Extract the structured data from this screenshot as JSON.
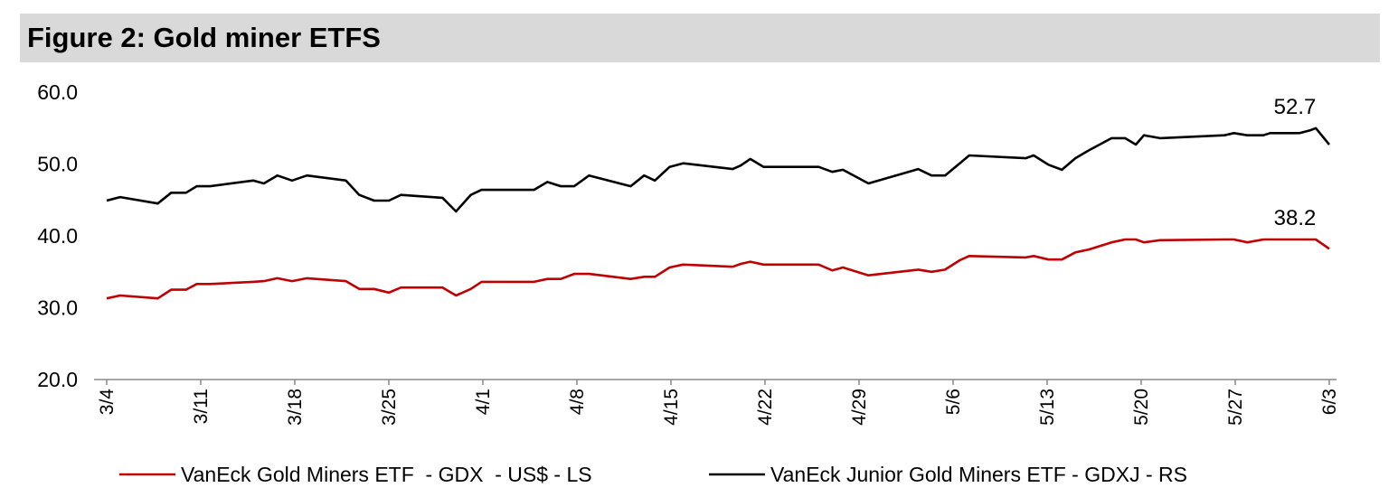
{
  "title": "Figure 2: Gold miner ETFS",
  "chart_data": {
    "type": "line",
    "title": "Figure 2: Gold miner ETFS",
    "xlabel": "",
    "ylabel": "",
    "x_unit": "days since 3/4",
    "ylim": [
      20,
      60
    ],
    "yticks": [
      "20.0",
      "30.0",
      "40.0",
      "50.0",
      "60.0"
    ],
    "ytick_values": [
      20,
      30,
      40,
      50,
      60
    ],
    "xticks": [
      {
        "label": "3/4",
        "day": 0
      },
      {
        "label": "3/11",
        "day": 7
      },
      {
        "label": "3/18",
        "day": 14
      },
      {
        "label": "3/25",
        "day": 21
      },
      {
        "label": "4/1",
        "day": 28
      },
      {
        "label": "4/8",
        "day": 35
      },
      {
        "label": "4/15",
        "day": 42
      },
      {
        "label": "4/22",
        "day": 49
      },
      {
        "label": "4/29",
        "day": 56
      },
      {
        "label": "5/6",
        "day": 63
      },
      {
        "label": "5/13",
        "day": 70
      },
      {
        "label": "5/20",
        "day": 77
      },
      {
        "label": "5/27",
        "day": 84
      },
      {
        "label": "6/3",
        "day": 91
      }
    ],
    "xlim": [
      0,
      91
    ],
    "grid": false,
    "legend_position": "bottom",
    "x": [
      0,
      1.0,
      3.8,
      4.8,
      5.9,
      6.7,
      7.7,
      10.9,
      11.7,
      12.7,
      13.8,
      14.9,
      17.8,
      18.8,
      19.9,
      21.0,
      21.9,
      25.0,
      26.0,
      27.1,
      27.9,
      31.8,
      32.8,
      33.8,
      34.8,
      35.9,
      39.0,
      40.0,
      40.8,
      41.9,
      42.9,
      46.6,
      47.2,
      47.9,
      48.9,
      53.0,
      54.0,
      54.8,
      56.7,
      60.4,
      61.4,
      62.4,
      63.5,
      64.2,
      68.4,
      69.0,
      70.1,
      71.1,
      72.1,
      73.1,
      74.8,
      75.8,
      76.6,
      77.2,
      78.4,
      83.2,
      83.9,
      84.9,
      86.1,
      86.6,
      88.8,
      89.6,
      90.0,
      91.0
    ],
    "series": [
      {
        "name": "VanEck Gold Miners ETF  - GDX  - US$ - LS",
        "color": "#c00000",
        "end_label": "38.2",
        "values": [
          31.3,
          31.7,
          31.3,
          32.5,
          32.5,
          33.3,
          33.3,
          33.6,
          33.7,
          34.1,
          33.7,
          34.1,
          33.7,
          32.6,
          32.6,
          32.1,
          32.8,
          32.8,
          31.7,
          32.6,
          33.6,
          33.6,
          34.0,
          34.0,
          34.7,
          34.7,
          34.0,
          34.3,
          34.3,
          35.6,
          36.0,
          35.7,
          36.1,
          36.4,
          36.0,
          36.0,
          35.2,
          35.6,
          34.5,
          35.3,
          35.0,
          35.3,
          36.6,
          37.2,
          37.0,
          37.2,
          36.7,
          36.7,
          37.7,
          38.1,
          39.1,
          39.5,
          39.5,
          39.1,
          39.4,
          39.5,
          39.5,
          39.1,
          39.5,
          39.5,
          39.5,
          39.5,
          39.5,
          38.2
        ]
      },
      {
        "name": "VanEck Junior Gold Miners ETF - GDXJ - RS",
        "color": "#000000",
        "end_label": "52.7",
        "values": [
          44.9,
          45.4,
          44.5,
          46.0,
          46.0,
          46.9,
          46.9,
          47.7,
          47.3,
          48.4,
          47.7,
          48.4,
          47.7,
          45.7,
          44.9,
          44.9,
          45.7,
          45.3,
          43.4,
          45.7,
          46.4,
          46.4,
          47.5,
          46.9,
          46.9,
          48.4,
          46.9,
          48.4,
          47.7,
          49.6,
          50.1,
          49.3,
          49.8,
          50.7,
          49.6,
          49.6,
          48.9,
          49.2,
          47.3,
          49.3,
          48.4,
          48.4,
          50.1,
          51.2,
          50.8,
          51.2,
          49.9,
          49.2,
          50.8,
          51.9,
          53.6,
          53.6,
          52.7,
          54.0,
          53.6,
          54.0,
          54.3,
          54.0,
          54.0,
          54.3,
          54.3,
          54.7,
          55.0,
          52.7
        ]
      }
    ]
  }
}
